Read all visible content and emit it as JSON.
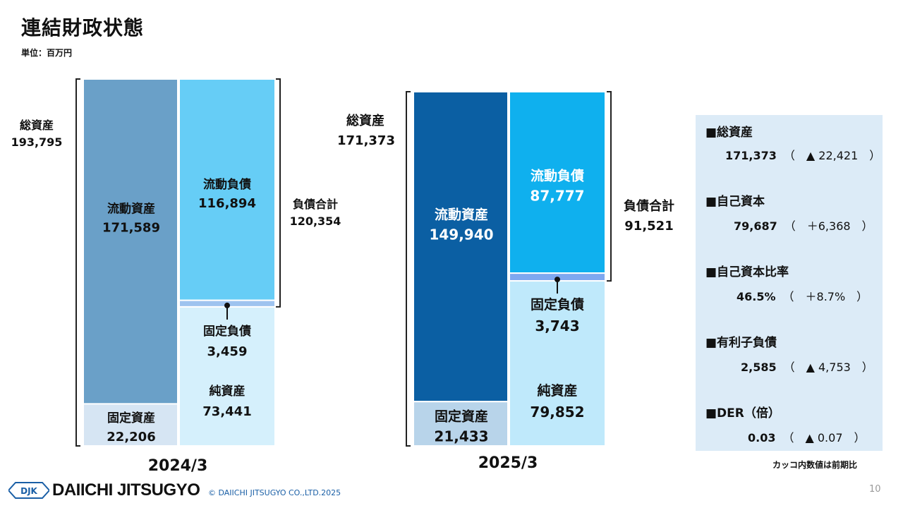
{
  "page": {
    "title": "連結財政状態",
    "unit": "単位：百万円",
    "note": "カッコ内数値は前期比",
    "copyright": "© DAIICHI JITSUGYO CO.,LTD.2025",
    "logo_text": "DAIICHI JITSUGYO",
    "logo_mark": "DJK",
    "page_number": "10"
  },
  "chart_data": [
    {
      "type": "bar",
      "stacked": true,
      "period": "2024/3",
      "total_assets": {
        "label": "総資産",
        "value_label": "193,795",
        "value": 193795
      },
      "total_liabilities": {
        "label": "負債合計",
        "value_label": "120,354",
        "value": 120354
      },
      "assets": [
        {
          "name": "流動資産",
          "value": 171589,
          "value_label": "171,589",
          "color": "#6aa0c8"
        },
        {
          "name": "固定資産",
          "value": 22206,
          "value_label": "22,206",
          "color": "#d6e5f3"
        }
      ],
      "liabilities_equity": [
        {
          "name": "流動負債",
          "value": 116894,
          "value_label": "116,894",
          "color": "#66cdf6"
        },
        {
          "name": "固定負債",
          "value": 3459,
          "value_label": "3,459",
          "color": "#9ec3ef"
        },
        {
          "name": "純資産",
          "value": 73441,
          "value_label": "73,441",
          "color": "#d5f0fc"
        }
      ]
    },
    {
      "type": "bar",
      "stacked": true,
      "period": "2025/3",
      "total_assets": {
        "label": "総資産",
        "value_label": "171,373",
        "value": 171373
      },
      "total_liabilities": {
        "label": "負債合計",
        "value_label": "91,521",
        "value": 91521
      },
      "assets": [
        {
          "name": "流動資産",
          "value": 149940,
          "value_label": "149,940",
          "color": "#0b5fa3"
        },
        {
          "name": "固定資産",
          "value": 21433,
          "value_label": "21,433",
          "color": "#b8d4ea"
        }
      ],
      "liabilities_equity": [
        {
          "name": "流動負債",
          "value": 87777,
          "value_label": "87,777",
          "color": "#0fb0ee"
        },
        {
          "name": "固定負債",
          "value": 3743,
          "value_label": "3,743",
          "color": "#7fa8f0"
        },
        {
          "name": "純資産",
          "value": 79852,
          "value_label": "79,852",
          "color": "#bfe9fb"
        }
      ]
    }
  ],
  "kpis": [
    {
      "name": "■総資産",
      "value": "171,373",
      "change": "（　▲ 22,421　）"
    },
    {
      "name": "■自己資本",
      "value": "79,687",
      "change": "（　＋6,368　）"
    },
    {
      "name": "■自己資本比率",
      "value": "46.5%",
      "change": "（　＋8.7%　）"
    },
    {
      "name": "■有利子負債",
      "value": "2,585",
      "change": "（　▲ 4,753　）"
    },
    {
      "name": "■DER（倍）",
      "value": "0.03",
      "change": "（　▲ 0.07　）"
    }
  ]
}
